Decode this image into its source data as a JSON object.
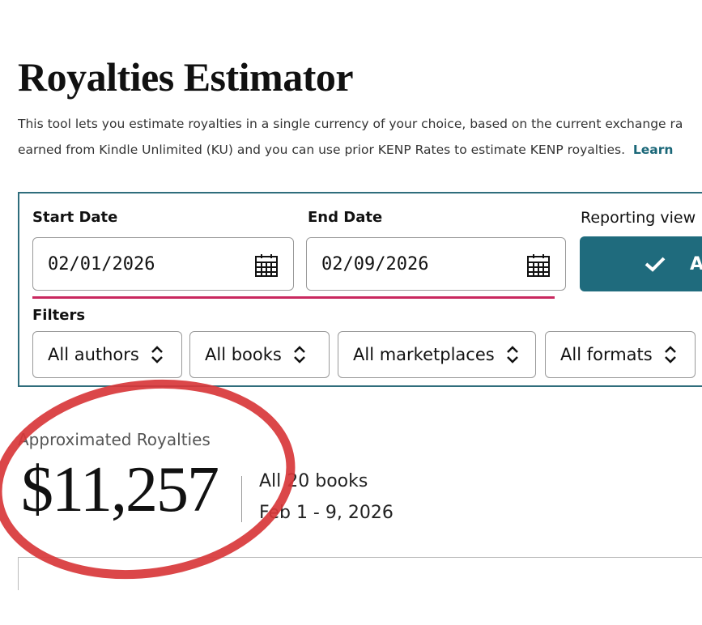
{
  "header": {
    "title": "Royalties Estimator",
    "description_line1": "This tool lets you estimate royalties in a single currency of your choice, based on the current exchange ra",
    "description_line2": "earned from Kindle Unlimited (KU) and you can use prior KENP Rates to estimate KENP royalties.",
    "learn_link": "Learn"
  },
  "form": {
    "start_date_label": "Start Date",
    "start_date": "02/01/2026",
    "end_date_label": "End Date",
    "end_date": "02/09/2026",
    "reporting_view_label": "Reporting view",
    "apply_button": "A",
    "filters_label": "Filters",
    "filters": [
      "All authors",
      "All books",
      "All marketplaces",
      "All formats"
    ]
  },
  "summary": {
    "label": "Approximated Royalties",
    "amount": "$11,257",
    "books": "All 20 books",
    "date_range": "Feb 1 - 9, 2026"
  }
}
